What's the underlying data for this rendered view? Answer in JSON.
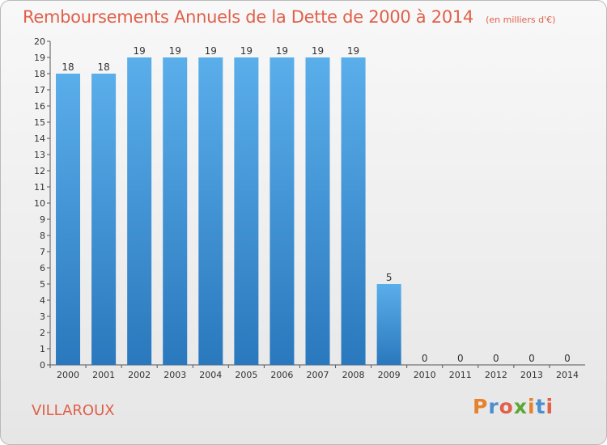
{
  "header": {
    "title": "Remboursements Annuels de la Dette de 2000 à 2014",
    "subtitle": "(en milliers d'€)"
  },
  "footer": {
    "commune": "VILLAROUX",
    "logo_text": "Proxiti"
  },
  "colors": {
    "title": "#e0604a",
    "bar_top": "#5aaeea",
    "bar_bottom": "#2a78bd",
    "logo_letters": [
      "#e6822c",
      "#4a8fd0",
      "#e0604a",
      "#5aa832",
      "#e6822c",
      "#4a8fd0",
      "#e0604a"
    ]
  },
  "chart_data": {
    "type": "bar",
    "title": "Remboursements Annuels de la Dette de 2000 à 2014",
    "subtitle": "(en milliers d'€)",
    "categories": [
      "2000",
      "2001",
      "2002",
      "2003",
      "2004",
      "2005",
      "2006",
      "2007",
      "2008",
      "2009",
      "2010",
      "2011",
      "2012",
      "2013",
      "2014"
    ],
    "values": [
      18,
      18,
      19,
      19,
      19,
      19,
      19,
      19,
      19,
      5,
      0,
      0,
      0,
      0,
      0
    ],
    "ylim": [
      0,
      20
    ],
    "yticks": [
      0,
      1,
      2,
      3,
      4,
      5,
      6,
      7,
      8,
      9,
      10,
      11,
      12,
      13,
      14,
      15,
      16,
      17,
      18,
      19,
      20
    ],
    "xlabel": "",
    "ylabel": "",
    "grid": false,
    "legend": "none"
  }
}
